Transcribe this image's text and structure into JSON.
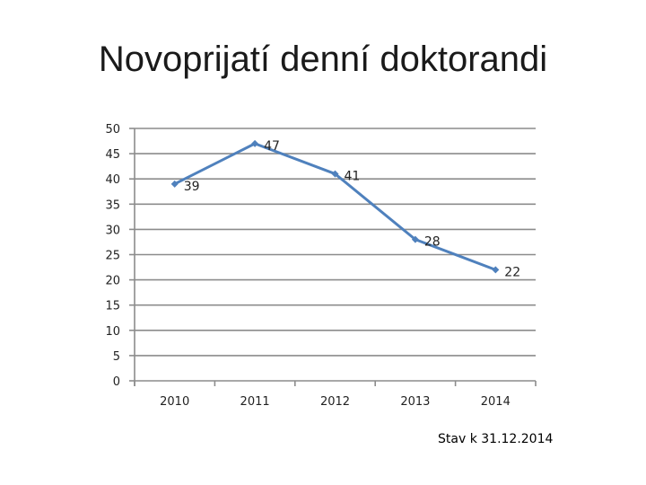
{
  "slide": {
    "title": "Novoprijatí denní doktorandi",
    "note": "Stav k 31.12.2014"
  },
  "chart_data": {
    "type": "line",
    "categories": [
      "2010",
      "2011",
      "2012",
      "2013",
      "2014"
    ],
    "series": [
      {
        "values": [
          39,
          47,
          41,
          28,
          22
        ],
        "color": "#4f81bd",
        "data_labels": [
          "39",
          "47",
          "41",
          "28",
          "22"
        ]
      }
    ],
    "y_ticks": [
      "0",
      "5",
      "10",
      "15",
      "20",
      "25",
      "30",
      "35",
      "40",
      "45",
      "50"
    ],
    "ylim": [
      0,
      50
    ],
    "grid": true,
    "grid_color": "#8c8c8c",
    "legend": "none"
  }
}
